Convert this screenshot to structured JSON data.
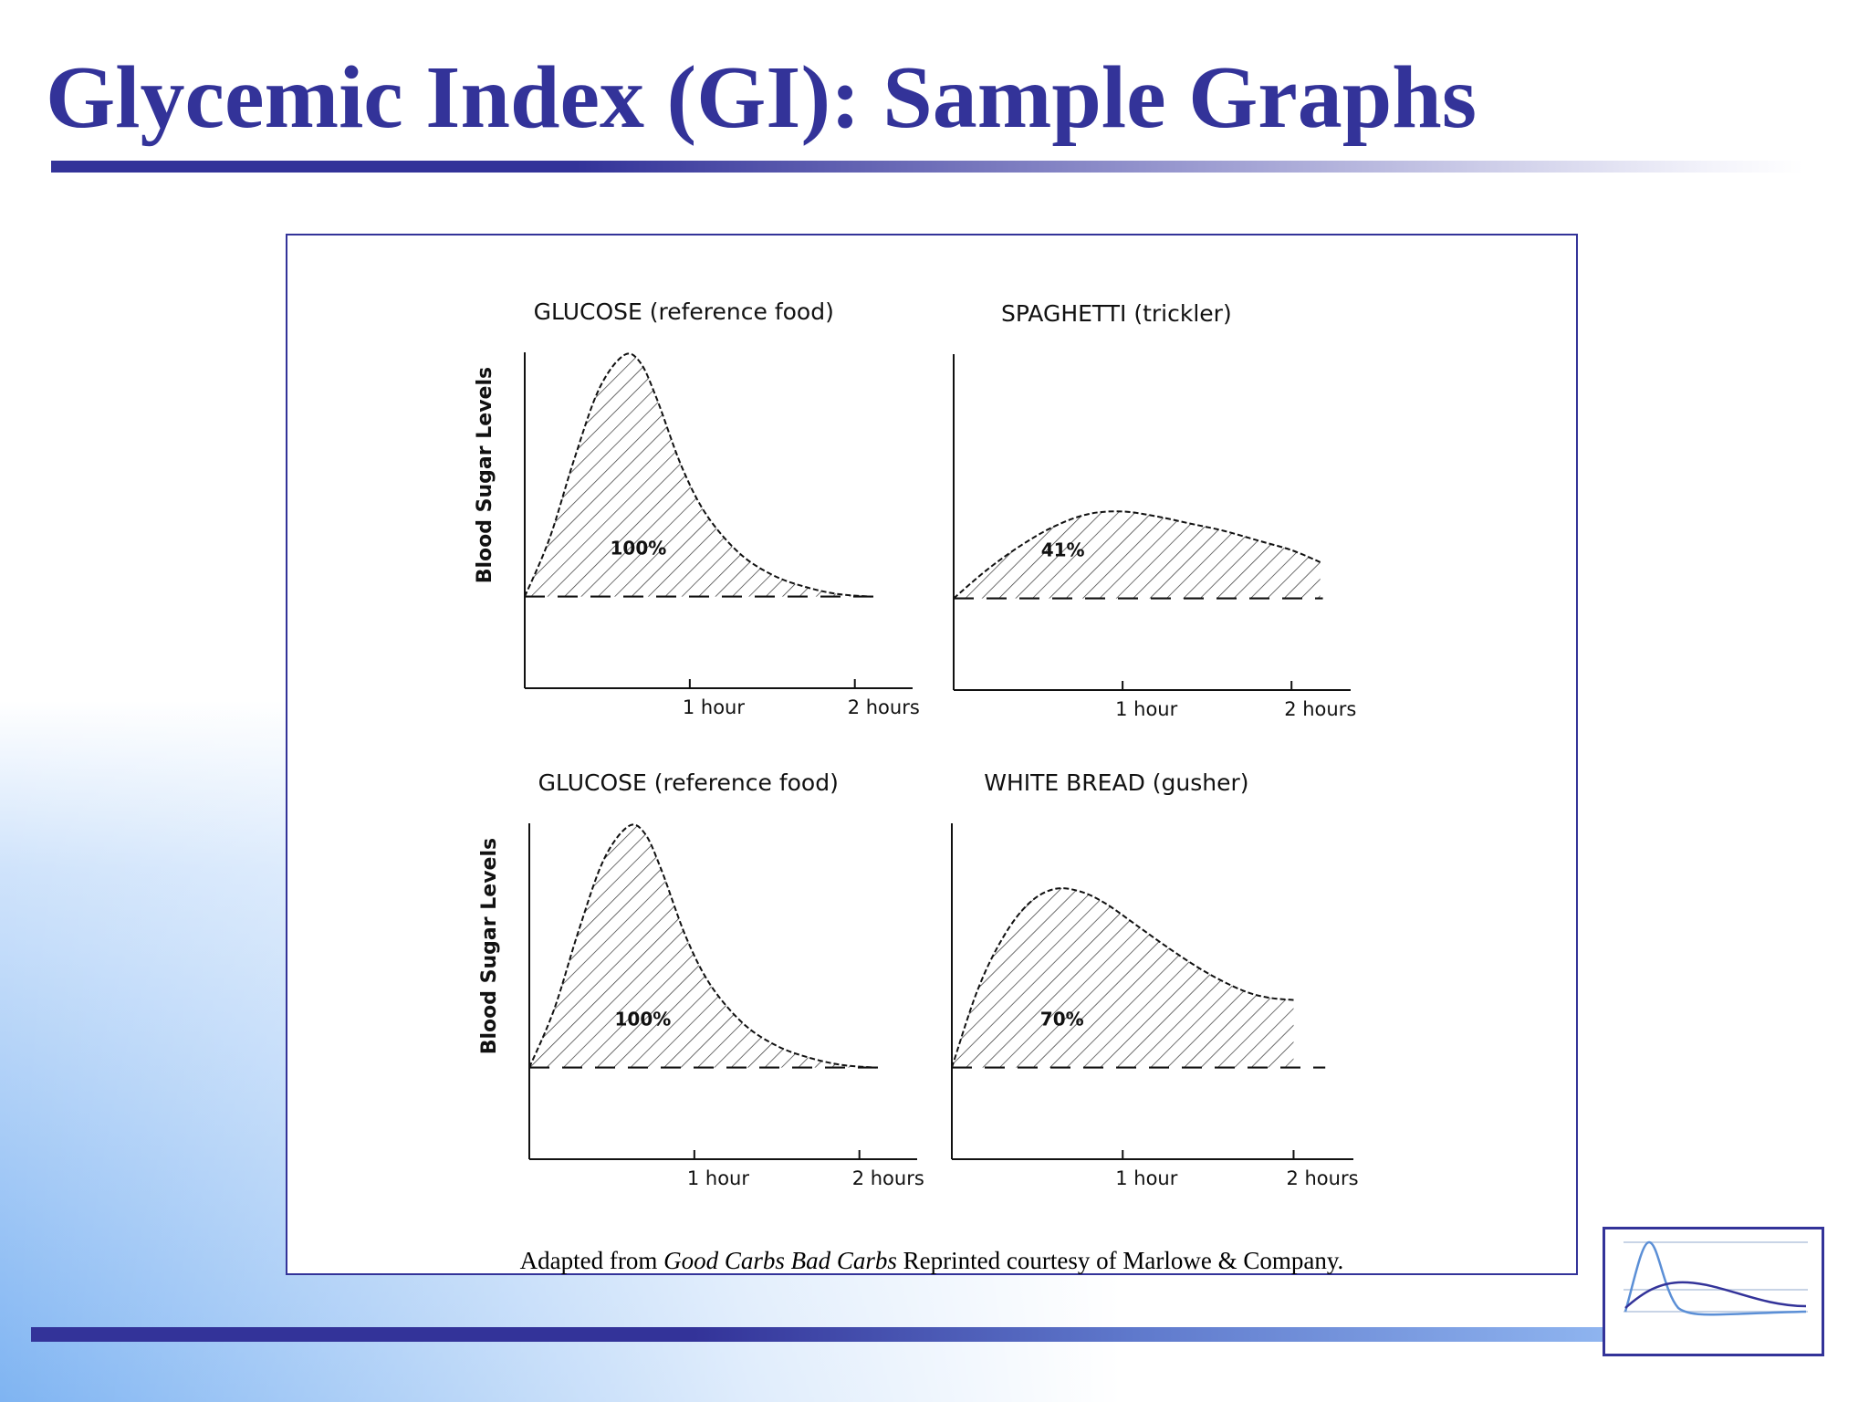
{
  "slide": {
    "title": "Glycemic Index (GI): Sample Graphs",
    "caption_prefix": "Adapted from ",
    "caption_book": "Good Carbs Bad Carbs",
    "caption_suffix": "  Reprinted courtesy of Marlowe & Company.",
    "accent_color": "#333399"
  },
  "chart_data": [
    {
      "type": "area",
      "title": "GLUCOSE (reference food)",
      "ylabel": "Blood Sugar Levels",
      "xlabel": "",
      "x_ticks": [
        {
          "value": 1,
          "label": "1 hour"
        },
        {
          "value": 2,
          "label": "2 hours"
        }
      ],
      "xlim": [
        0,
        2.35
      ],
      "ylim": [
        0,
        1.4
      ],
      "baseline": 0.38,
      "area_label": "100%",
      "x": [
        0,
        0.15,
        0.3,
        0.45,
        0.6,
        0.7,
        0.8,
        0.95,
        1.1,
        1.3,
        1.5,
        1.7,
        1.9,
        2.1
      ],
      "values": [
        0.38,
        0.62,
        0.95,
        1.24,
        1.38,
        1.35,
        1.2,
        0.92,
        0.72,
        0.56,
        0.47,
        0.42,
        0.39,
        0.38
      ]
    },
    {
      "type": "area",
      "title": "SPAGHETTI (trickler)",
      "ylabel": "",
      "xlabel": "",
      "x_ticks": [
        {
          "value": 1,
          "label": "1 hour"
        },
        {
          "value": 2,
          "label": "2 hours"
        }
      ],
      "xlim": [
        0,
        2.35
      ],
      "ylim": [
        0,
        1.4
      ],
      "baseline": 0.38,
      "area_label": "41%",
      "x": [
        0,
        0.2,
        0.4,
        0.6,
        0.8,
        1.0,
        1.2,
        1.4,
        1.6,
        1.8,
        2.0,
        2.17
      ],
      "values": [
        0.38,
        0.5,
        0.6,
        0.68,
        0.73,
        0.74,
        0.72,
        0.69,
        0.66,
        0.62,
        0.58,
        0.53
      ]
    },
    {
      "type": "area",
      "title": "GLUCOSE (reference food)",
      "ylabel": "Blood Sugar Levels",
      "xlabel": "",
      "x_ticks": [
        {
          "value": 1,
          "label": "1 hour"
        },
        {
          "value": 2,
          "label": "2 hours"
        }
      ],
      "xlim": [
        0,
        2.35
      ],
      "ylim": [
        0,
        1.4
      ],
      "baseline": 0.38,
      "area_label": "100%",
      "x": [
        0,
        0.15,
        0.3,
        0.45,
        0.6,
        0.7,
        0.8,
        0.95,
        1.1,
        1.3,
        1.5,
        1.7,
        1.9,
        2.1
      ],
      "values": [
        0.38,
        0.62,
        0.95,
        1.24,
        1.38,
        1.35,
        1.2,
        0.92,
        0.72,
        0.56,
        0.47,
        0.42,
        0.39,
        0.38
      ]
    },
    {
      "type": "area",
      "title": "WHITE BREAD (gusher)",
      "ylabel": "",
      "xlabel": "",
      "x_ticks": [
        {
          "value": 1,
          "label": "1 hour"
        },
        {
          "value": 2,
          "label": "2 hours"
        }
      ],
      "xlim": [
        0,
        2.35
      ],
      "ylim": [
        0,
        1.4
      ],
      "baseline": 0.38,
      "area_label": "70%",
      "x": [
        0,
        0.15,
        0.3,
        0.45,
        0.6,
        0.75,
        0.9,
        1.1,
        1.3,
        1.5,
        1.7,
        1.85,
        2.0
      ],
      "values": [
        0.38,
        0.7,
        0.92,
        1.06,
        1.12,
        1.11,
        1.06,
        0.96,
        0.86,
        0.77,
        0.7,
        0.67,
        0.66
      ]
    }
  ]
}
